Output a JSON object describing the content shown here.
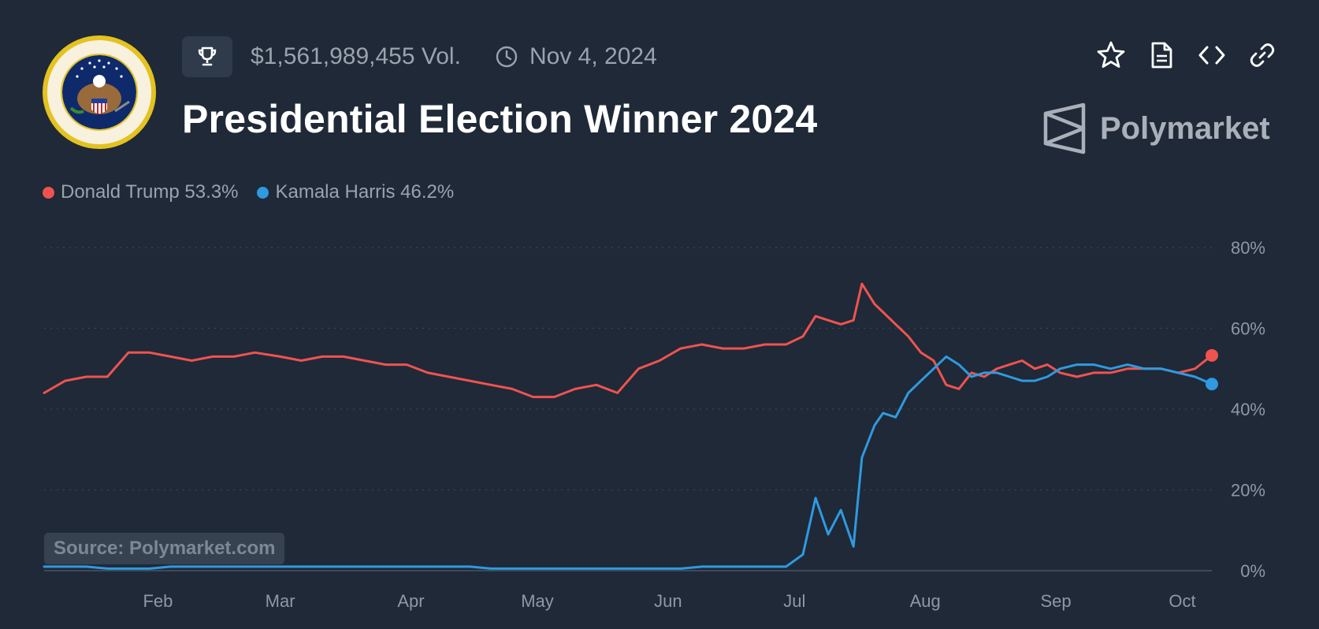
{
  "header": {
    "volume": "$1,561,989,455 Vol.",
    "date": "Nov 4, 2024",
    "title": "Presidential Election Winner 2024",
    "brand": "Polymarket",
    "icons": {
      "logo": "presidential-seal-icon",
      "trophy": "trophy-icon",
      "clock": "clock-icon",
      "star": "star-icon",
      "document": "document-icon",
      "code": "code-icon",
      "link": "link-icon",
      "brand_logo": "polymarket-logo-icon"
    }
  },
  "legend": [
    {
      "label": "Donald Trump 53.3%",
      "color": "#ef5350"
    },
    {
      "label": "Kamala Harris 46.2%",
      "color": "#2f9ae0"
    }
  ],
  "source": "Source: Polymarket.com",
  "colors": {
    "background": "#1f2937",
    "trump": "#ef5350",
    "harris": "#2f9ae0",
    "grid": "#3a4452",
    "tick": "#8f98a3"
  },
  "chart_data": {
    "type": "line",
    "title": "",
    "xlabel": "",
    "ylabel": "",
    "ylim": [
      0,
      80
    ],
    "grid": true,
    "x_ticks": [
      "Feb",
      "Mar",
      "Apr",
      "May",
      "Jun",
      "Jul",
      "Aug",
      "Sep",
      "Oct"
    ],
    "y_ticks": [
      "0%",
      "20%",
      "40%",
      "60%",
      "80%"
    ],
    "x": [
      "2024-01-05",
      "2024-01-10",
      "2024-01-15",
      "2024-01-20",
      "2024-01-25",
      "2024-01-30",
      "2024-02-04",
      "2024-02-09",
      "2024-02-14",
      "2024-02-19",
      "2024-02-24",
      "2024-03-01",
      "2024-03-06",
      "2024-03-11",
      "2024-03-16",
      "2024-03-21",
      "2024-03-26",
      "2024-03-31",
      "2024-04-05",
      "2024-04-10",
      "2024-04-15",
      "2024-04-20",
      "2024-04-25",
      "2024-04-30",
      "2024-05-05",
      "2024-05-10",
      "2024-05-15",
      "2024-05-20",
      "2024-05-25",
      "2024-05-30",
      "2024-06-04",
      "2024-06-09",
      "2024-06-14",
      "2024-06-19",
      "2024-06-24",
      "2024-06-29",
      "2024-07-03",
      "2024-07-06",
      "2024-07-09",
      "2024-07-12",
      "2024-07-15",
      "2024-07-17",
      "2024-07-20",
      "2024-07-22",
      "2024-07-25",
      "2024-07-28",
      "2024-07-31",
      "2024-08-03",
      "2024-08-06",
      "2024-08-09",
      "2024-08-12",
      "2024-08-15",
      "2024-08-18",
      "2024-08-21",
      "2024-08-24",
      "2024-08-27",
      "2024-08-30",
      "2024-09-02",
      "2024-09-06",
      "2024-09-10",
      "2024-09-14",
      "2024-09-18",
      "2024-09-22",
      "2024-09-26",
      "2024-09-30",
      "2024-10-04",
      "2024-10-08"
    ],
    "series": [
      {
        "name": "Donald Trump",
        "values": [
          44,
          47,
          48,
          48,
          54,
          54,
          53,
          52,
          53,
          53,
          54,
          53,
          52,
          53,
          53,
          52,
          51,
          51,
          49,
          48,
          47,
          46,
          45,
          43,
          43,
          45,
          46,
          44,
          50,
          52,
          55,
          56,
          55,
          55,
          56,
          56,
          58,
          63,
          62,
          61,
          62,
          71,
          66,
          64,
          61,
          58,
          54,
          52,
          46,
          45,
          49,
          48,
          50,
          51,
          52,
          50,
          51,
          49,
          48,
          49,
          49,
          50,
          50,
          50,
          49,
          50,
          53.3
        ]
      },
      {
        "name": "Kamala Harris",
        "values": [
          1,
          1,
          1,
          0.5,
          0.5,
          0.5,
          1,
          1,
          1,
          1,
          1,
          1,
          1,
          1,
          1,
          1,
          1,
          1,
          1,
          1,
          1,
          0.5,
          0.5,
          0.5,
          0.5,
          0.5,
          0.5,
          0.5,
          0.5,
          0.5,
          0.5,
          1,
          1,
          1,
          1,
          1,
          4,
          18,
          9,
          15,
          6,
          28,
          36,
          39,
          38,
          44,
          47,
          50,
          53,
          51,
          48,
          49,
          49,
          48,
          47,
          47,
          48,
          50,
          51,
          51,
          50,
          51,
          50,
          50,
          49,
          48,
          46.2
        ]
      }
    ]
  }
}
